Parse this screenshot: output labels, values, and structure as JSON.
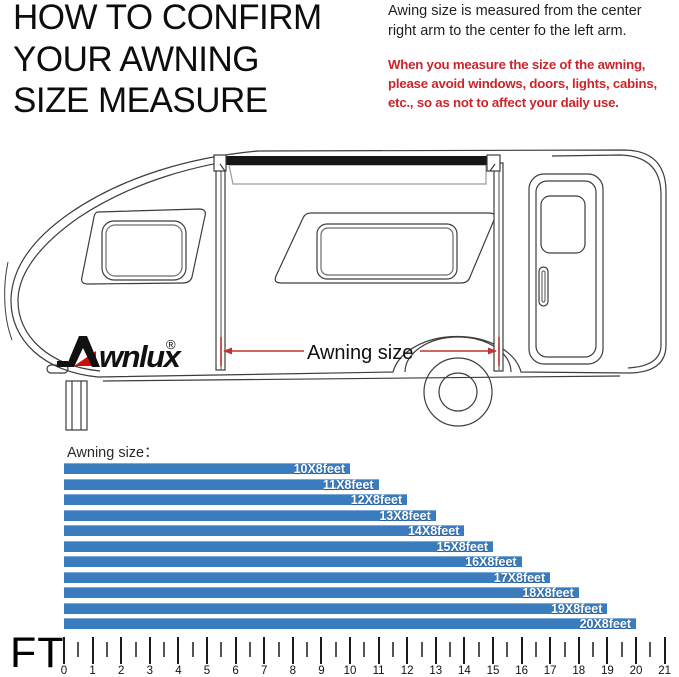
{
  "header": {
    "title_lines": [
      "HOW TO CONFIRM",
      "YOUR AWNING",
      "SIZE MEASURE"
    ],
    "note": "Awing size is measured from the center right arm to the center fo the left arm.",
    "warning": "When you measure the size of the awning, please avoid windows, doors, lights, cabins, etc., so as not to affect your daily use.",
    "warning_color": "#c9252b"
  },
  "diagram": {
    "brand": "Awnlux",
    "brand_suffix": "wnlux",
    "registered_mark": "®",
    "measure_label": "Awning size",
    "measure_line_color": "#c23330"
  },
  "chart_data": {
    "type": "bar",
    "orientation": "horizontal",
    "title": "Awning size：",
    "categories": [
      "10X8feet",
      "11X8feet",
      "12X8feet",
      "13X8feet",
      "14X8feet",
      "15X8feet",
      "16X8feet",
      "17X8feet",
      "18X8feet",
      "19X8feet",
      "20X8feet"
    ],
    "values": [
      10,
      11,
      12,
      13,
      14,
      15,
      16,
      17,
      18,
      19,
      20
    ],
    "bar_color": "#3a7cbe",
    "label_color": "#ffffff",
    "axis": {
      "unit": "FT",
      "min": 0,
      "max": 21,
      "major_step": 1,
      "minor_step": 0.5,
      "tick_labels": [
        0,
        1,
        2,
        3,
        4,
        5,
        6,
        7,
        8,
        9,
        10,
        11,
        12,
        13,
        14,
        15,
        16,
        17,
        18,
        19,
        20,
        21
      ]
    }
  }
}
